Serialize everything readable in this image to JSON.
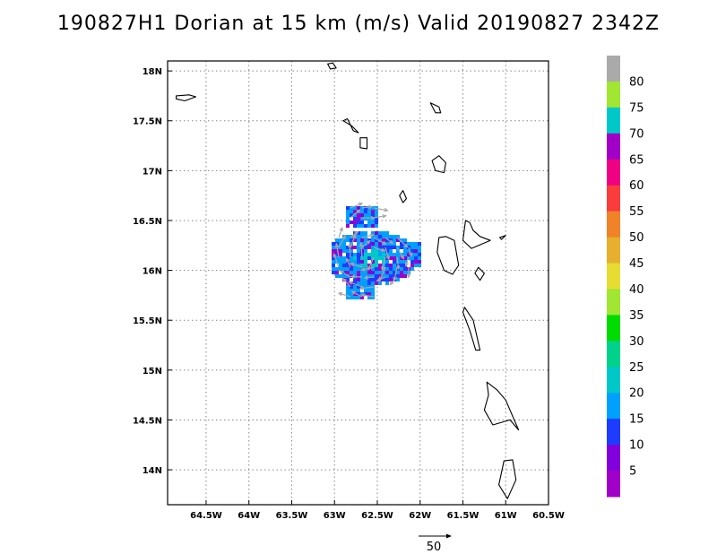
{
  "title": "190827H1 Dorian at 15 km (m/s) Valid 20190827 2342Z",
  "map": {
    "lon_range": [
      -64.95,
      -60.5
    ],
    "lat_range": [
      13.65,
      18.1
    ],
    "x_ticks": [
      {
        "lon": -64.5,
        "label": "64.5W"
      },
      {
        "lon": -64,
        "label": "64W"
      },
      {
        "lon": -63.5,
        "label": "63.5W"
      },
      {
        "lon": -63,
        "label": "63W"
      },
      {
        "lon": -62.5,
        "label": "62.5W"
      },
      {
        "lon": -62,
        "label": "62W"
      },
      {
        "lon": -61.5,
        "label": "61.5W"
      },
      {
        "lon": -61,
        "label": "61W"
      },
      {
        "lon": -60.5,
        "label": "60.5W"
      }
    ],
    "y_ticks": [
      {
        "lat": 18,
        "label": "18N"
      },
      {
        "lat": 17.5,
        "label": "17.5N"
      },
      {
        "lat": 17,
        "label": "17N"
      },
      {
        "lat": 16.5,
        "label": "16.5N"
      },
      {
        "lat": 16,
        "label": "16N"
      },
      {
        "lat": 15.5,
        "label": "15.5N"
      },
      {
        "lat": 15,
        "label": "15N"
      },
      {
        "lat": 14.5,
        "label": "14.5N"
      },
      {
        "lat": 14,
        "label": "14N"
      }
    ],
    "grid": "dotted",
    "islands": [
      [
        [
          -64.85,
          17.75
        ],
        [
          -64.7,
          17.76
        ],
        [
          -64.62,
          17.74
        ],
        [
          -64.75,
          17.7
        ],
        [
          -64.85,
          17.72
        ]
      ],
      [
        [
          -63.08,
          18.07
        ],
        [
          -63.02,
          18.08
        ],
        [
          -62.98,
          18.03
        ],
        [
          -63.05,
          18.02
        ]
      ],
      [
        [
          -62.9,
          17.5
        ],
        [
          -62.85,
          17.52
        ],
        [
          -62.78,
          17.4
        ],
        [
          -62.72,
          17.38
        ],
        [
          -62.8,
          17.45
        ]
      ],
      [
        [
          -62.7,
          17.33
        ],
        [
          -62.62,
          17.33
        ],
        [
          -62.62,
          17.22
        ],
        [
          -62.7,
          17.23
        ]
      ],
      [
        [
          -61.88,
          17.68
        ],
        [
          -61.78,
          17.64
        ],
        [
          -61.76,
          17.58
        ],
        [
          -61.82,
          17.58
        ]
      ],
      [
        [
          -61.86,
          17.1
        ],
        [
          -61.78,
          17.15
        ],
        [
          -61.7,
          17.08
        ],
        [
          -61.72,
          16.98
        ],
        [
          -61.82,
          17.0
        ]
      ],
      [
        [
          -62.2,
          16.8
        ],
        [
          -62.16,
          16.72
        ],
        [
          -62.2,
          16.68
        ],
        [
          -62.24,
          16.75
        ]
      ],
      [
        [
          -61.78,
          16.33
        ],
        [
          -61.7,
          16.34
        ],
        [
          -61.6,
          16.3
        ],
        [
          -61.55,
          16.05
        ],
        [
          -61.62,
          15.96
        ],
        [
          -61.72,
          16.0
        ],
        [
          -61.8,
          16.18
        ]
      ],
      [
        [
          -61.47,
          16.5
        ],
        [
          -61.42,
          16.48
        ],
        [
          -61.38,
          16.4
        ],
        [
          -61.3,
          16.34
        ],
        [
          -61.18,
          16.3
        ],
        [
          -61.4,
          16.22
        ],
        [
          -61.5,
          16.3
        ]
      ],
      [
        [
          -61.07,
          16.33
        ],
        [
          -61.0,
          16.35
        ],
        [
          -61.05,
          16.31
        ]
      ],
      [
        [
          -61.32,
          16.03
        ],
        [
          -61.25,
          15.97
        ],
        [
          -61.3,
          15.9
        ],
        [
          -61.36,
          15.97
        ]
      ],
      [
        [
          -61.48,
          15.63
        ],
        [
          -61.38,
          15.5
        ],
        [
          -61.3,
          15.2
        ],
        [
          -61.35,
          15.2
        ],
        [
          -61.42,
          15.4
        ],
        [
          -61.5,
          15.58
        ]
      ],
      [
        [
          -61.22,
          14.88
        ],
        [
          -61.1,
          14.8
        ],
        [
          -61.0,
          14.7
        ],
        [
          -60.85,
          14.4
        ],
        [
          -60.95,
          14.5
        ],
        [
          -61.15,
          14.45
        ],
        [
          -61.25,
          14.6
        ],
        [
          -61.2,
          14.75
        ]
      ],
      [
        [
          -61.02,
          14.09
        ],
        [
          -60.92,
          14.1
        ],
        [
          -60.88,
          13.9
        ],
        [
          -60.98,
          13.71
        ],
        [
          -61.08,
          13.85
        ]
      ]
    ],
    "colorbar": {
      "labels": [
        "5",
        "10",
        "15",
        "20",
        "25",
        "30",
        "35",
        "40",
        "45",
        "50",
        "55",
        "60",
        "65",
        "70",
        "75",
        "80"
      ],
      "colors": [
        "#a000c8",
        "#8200dc",
        "#1e3cff",
        "#00a0ff",
        "#00c8c8",
        "#00d28c",
        "#00dc00",
        "#a0e632",
        "#e6dc32",
        "#e6af2d",
        "#f08228",
        "#fa3c3c",
        "#f00082",
        "#a000c8",
        "#00c8c8",
        "#a0e632",
        "#aaaaaa"
      ]
    },
    "reference_vector": {
      "label": "50"
    }
  }
}
